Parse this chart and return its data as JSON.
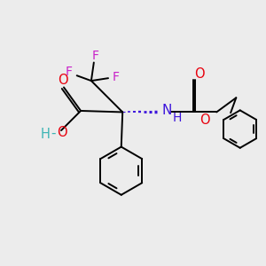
{
  "background": "#ececec",
  "bond_color": "#000000",
  "bond_width": 1.4,
  "figsize": [
    3.0,
    3.0
  ],
  "dpi": 100,
  "colors": {
    "O": "#e8000d",
    "N": "#3c14dc",
    "F": "#c820c8",
    "HO_H": "#3cb4b4",
    "HO_O": "#e8000d",
    "black": "#000000"
  },
  "xlim": [
    0,
    10
  ],
  "ylim": [
    0,
    10
  ]
}
